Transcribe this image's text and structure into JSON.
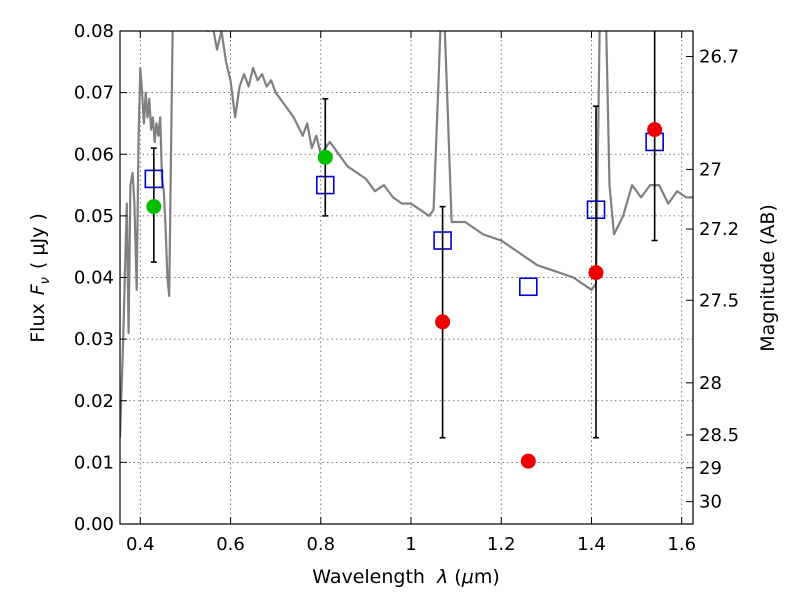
{
  "chart_data": {
    "type": "scatter",
    "xlabel": {
      "prefix": "Wavelength",
      "symbol": "λ",
      "unit_open": " (",
      "unit_mu": "μ",
      "unit_rest": "m)"
    },
    "ylabel": {
      "prefix": "Flux",
      "symbol": "F",
      "subscript": "ν",
      "unit": "( μJy )"
    },
    "y2label": "Magnitude (AB)",
    "xlim": [
      0.355,
      1.625
    ],
    "ylim": [
      0.0,
      0.08
    ],
    "grid": true,
    "x_ticks": [
      {
        "value": 0.4,
        "label": "0.4"
      },
      {
        "value": 0.6,
        "label": "0.6"
      },
      {
        "value": 0.8,
        "label": "0.8"
      },
      {
        "value": 1.0,
        "label": "1"
      },
      {
        "value": 1.2,
        "label": "1.2"
      },
      {
        "value": 1.4,
        "label": "1.4"
      },
      {
        "value": 1.6,
        "label": "1.6"
      }
    ],
    "y_ticks": [
      {
        "value": 0.0,
        "label": "0.00"
      },
      {
        "value": 0.01,
        "label": "0.01"
      },
      {
        "value": 0.02,
        "label": "0.02"
      },
      {
        "value": 0.03,
        "label": "0.03"
      },
      {
        "value": 0.04,
        "label": "0.04"
      },
      {
        "value": 0.05,
        "label": "0.05"
      },
      {
        "value": 0.06,
        "label": "0.06"
      },
      {
        "value": 0.07,
        "label": "0.07"
      },
      {
        "value": 0.08,
        "label": "0.08"
      }
    ],
    "y2_ticks": [
      {
        "value": 26.7,
        "label": "26.7"
      },
      {
        "value": 27.0,
        "label": "27"
      },
      {
        "value": 27.2,
        "label": "27.2"
      },
      {
        "value": 27.5,
        "label": "27.5"
      },
      {
        "value": 28.0,
        "label": "28"
      },
      {
        "value": 28.5,
        "label": "28.5"
      },
      {
        "value": 29.0,
        "label": "29"
      },
      {
        "value": 30.0,
        "label": "30"
      }
    ],
    "series": [
      {
        "style": "line",
        "color": "#808080",
        "points": [
          [
            0.355,
            0.014
          ],
          [
            0.362,
            0.03
          ],
          [
            0.37,
            0.052
          ],
          [
            0.374,
            0.031
          ],
          [
            0.378,
            0.055
          ],
          [
            0.383,
            0.057
          ],
          [
            0.387,
            0.052
          ],
          [
            0.392,
            0.038
          ],
          [
            0.396,
            0.062
          ],
          [
            0.4,
            0.074
          ],
          [
            0.404,
            0.07
          ],
          [
            0.408,
            0.065
          ],
          [
            0.412,
            0.07
          ],
          [
            0.416,
            0.066
          ],
          [
            0.42,
            0.069
          ],
          [
            0.424,
            0.064
          ],
          [
            0.428,
            0.066
          ],
          [
            0.432,
            0.062
          ],
          [
            0.436,
            0.065
          ],
          [
            0.44,
            0.063
          ],
          [
            0.444,
            0.066
          ],
          [
            0.448,
            0.056
          ],
          [
            0.452,
            0.054
          ],
          [
            0.456,
            0.048
          ],
          [
            0.46,
            0.04
          ],
          [
            0.464,
            0.037
          ],
          [
            0.468,
            0.06
          ],
          [
            0.472,
            0.082
          ],
          [
            0.48,
            0.09
          ],
          [
            0.5,
            0.095
          ],
          [
            0.52,
            0.093
          ],
          [
            0.54,
            0.085
          ],
          [
            0.55,
            0.08
          ],
          [
            0.56,
            0.081
          ],
          [
            0.57,
            0.077
          ],
          [
            0.58,
            0.08
          ],
          [
            0.59,
            0.075
          ],
          [
            0.6,
            0.072
          ],
          [
            0.61,
            0.066
          ],
          [
            0.62,
            0.071
          ],
          [
            0.63,
            0.073
          ],
          [
            0.64,
            0.071
          ],
          [
            0.65,
            0.074
          ],
          [
            0.66,
            0.072
          ],
          [
            0.67,
            0.073
          ],
          [
            0.68,
            0.071
          ],
          [
            0.69,
            0.072
          ],
          [
            0.7,
            0.07
          ],
          [
            0.72,
            0.068
          ],
          [
            0.74,
            0.066
          ],
          [
            0.76,
            0.063
          ],
          [
            0.77,
            0.065
          ],
          [
            0.78,
            0.061
          ],
          [
            0.79,
            0.063
          ],
          [
            0.8,
            0.06
          ],
          [
            0.82,
            0.062
          ],
          [
            0.84,
            0.06
          ],
          [
            0.86,
            0.058
          ],
          [
            0.88,
            0.057
          ],
          [
            0.9,
            0.056
          ],
          [
            0.92,
            0.054
          ],
          [
            0.94,
            0.055
          ],
          [
            0.96,
            0.053
          ],
          [
            0.98,
            0.052
          ],
          [
            1.0,
            0.052
          ],
          [
            1.02,
            0.051
          ],
          [
            1.04,
            0.05
          ],
          [
            1.05,
            0.051
          ],
          [
            1.06,
            0.07
          ],
          [
            1.07,
            0.09
          ],
          [
            1.08,
            0.07
          ],
          [
            1.09,
            0.049
          ],
          [
            1.12,
            0.049
          ],
          [
            1.16,
            0.047
          ],
          [
            1.2,
            0.046
          ],
          [
            1.24,
            0.044
          ],
          [
            1.28,
            0.042
          ],
          [
            1.32,
            0.041
          ],
          [
            1.36,
            0.04
          ],
          [
            1.38,
            0.039
          ],
          [
            1.4,
            0.038
          ],
          [
            1.41,
            0.039
          ],
          [
            1.42,
            0.09
          ],
          [
            1.43,
            0.09
          ],
          [
            1.44,
            0.055
          ],
          [
            1.45,
            0.047
          ],
          [
            1.47,
            0.05
          ],
          [
            1.49,
            0.055
          ],
          [
            1.51,
            0.053
          ],
          [
            1.53,
            0.055
          ],
          [
            1.55,
            0.055
          ],
          [
            1.57,
            0.052
          ],
          [
            1.59,
            0.054
          ],
          [
            1.61,
            0.053
          ],
          [
            1.625,
            0.053
          ]
        ]
      },
      {
        "style": "points",
        "marker": "open-square",
        "color": "#0000cc",
        "x": [
          0.43,
          0.81,
          1.07,
          1.26,
          1.41,
          1.54
        ],
        "y": [
          0.056,
          0.055,
          0.046,
          0.0385,
          0.051,
          0.062
        ]
      },
      {
        "style": "points",
        "marker": "filled-circle",
        "color": "#00c000",
        "x": [
          0.43,
          0.81
        ],
        "y": [
          0.0515,
          0.0595
        ],
        "yerr_low": [
          0.0425,
          0.05
        ],
        "yerr_high": [
          0.061,
          0.069
        ]
      },
      {
        "style": "points",
        "marker": "filled-circle",
        "color": "#ee0000",
        "x": [
          1.07,
          1.26,
          1.41,
          1.54
        ],
        "y": [
          0.0328,
          0.0102,
          0.0408,
          0.064
        ],
        "yerr_low": [
          0.014,
          0.0,
          0.014,
          0.046
        ],
        "yerr_high": [
          0.0515,
          0.0,
          0.0678,
          0.082
        ]
      }
    ]
  }
}
